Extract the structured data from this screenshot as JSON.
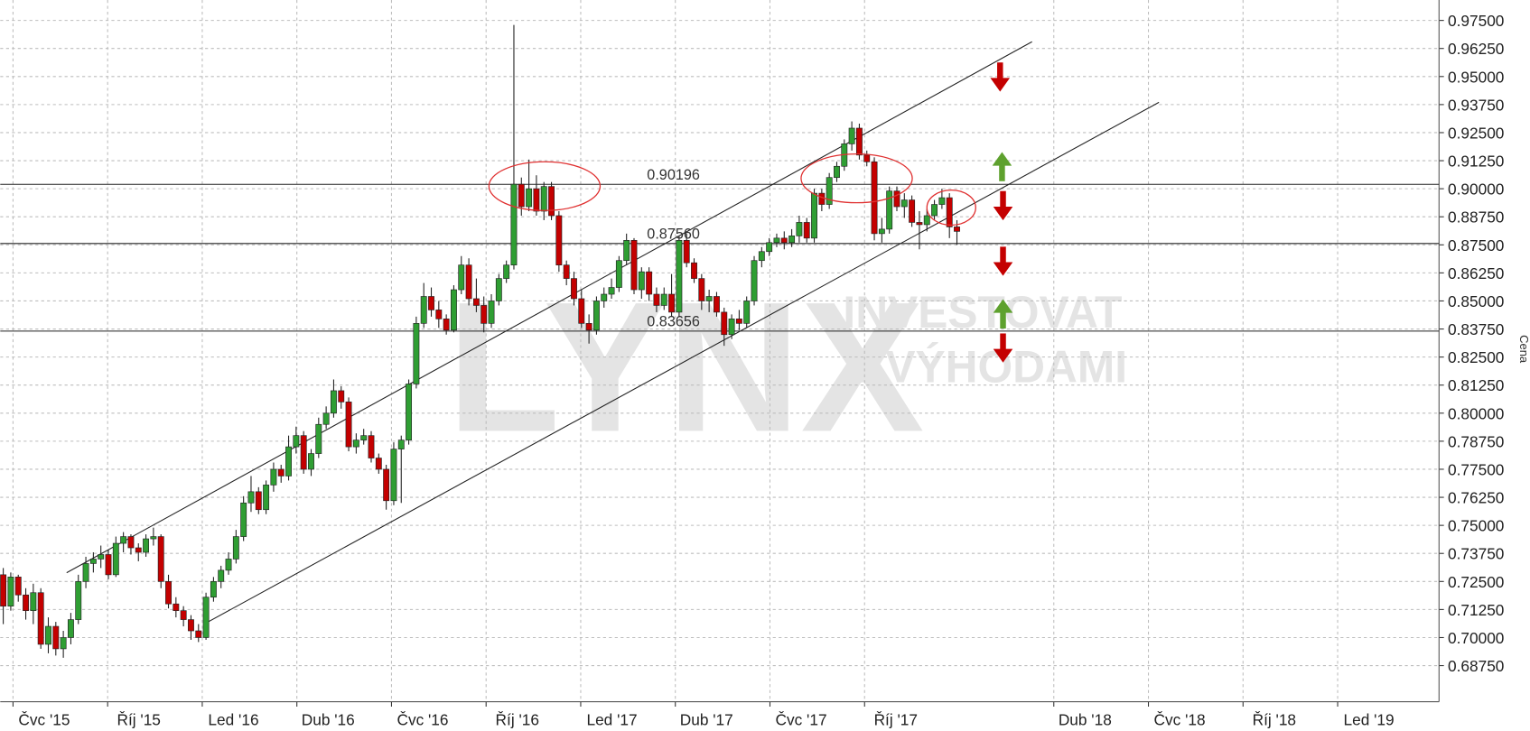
{
  "chart_data": {
    "type": "candlestick",
    "y_axis_label": "Cena",
    "watermark": {
      "logo": "LYNX",
      "line1": "INVESTOVAT",
      "line2": "S VÝHODAMI"
    },
    "up_color": "#2f9e33",
    "down_color": "#c40000",
    "grid": true,
    "xlim": [
      -0.4,
      191.2
    ],
    "ylim": [
      0.6714,
      0.9841
    ],
    "xticks": [
      {
        "value": 1.3,
        "label": "Čvc '15"
      },
      {
        "value": 13.9,
        "label": "Říj '15"
      },
      {
        "value": 26.5,
        "label": "Led '16"
      },
      {
        "value": 39.1,
        "label": "Dub '16"
      },
      {
        "value": 51.7,
        "label": "Čvc '16"
      },
      {
        "value": 64.3,
        "label": "Říj '16"
      },
      {
        "value": 76.9,
        "label": "Led '17"
      },
      {
        "value": 89.5,
        "label": "Dub '17"
      },
      {
        "value": 102.1,
        "label": "Čvc '17"
      },
      {
        "value": 114.7,
        "label": "Říj '17"
      },
      {
        "value": 139.9,
        "label": "Dub '18"
      },
      {
        "value": 152.5,
        "label": "Čvc '18"
      },
      {
        "value": 165.1,
        "label": "Říj '18"
      },
      {
        "value": 177.7,
        "label": "Led '19"
      }
    ],
    "yticks": [
      {
        "value": 0.6875,
        "label": "0.68750"
      },
      {
        "value": 0.7,
        "label": "0.70000"
      },
      {
        "value": 0.7125,
        "label": "0.71250"
      },
      {
        "value": 0.725,
        "label": "0.72500"
      },
      {
        "value": 0.7375,
        "label": "0.73750"
      },
      {
        "value": 0.75,
        "label": "0.75000"
      },
      {
        "value": 0.7625,
        "label": "0.76250"
      },
      {
        "value": 0.775,
        "label": "0.77500"
      },
      {
        "value": 0.7875,
        "label": "0.78750"
      },
      {
        "value": 0.8,
        "label": "0.80000"
      },
      {
        "value": 0.8125,
        "label": "0.81250"
      },
      {
        "value": 0.825,
        "label": "0.82500"
      },
      {
        "value": 0.8375,
        "label": "0.83750"
      },
      {
        "value": 0.85,
        "label": "0.85000"
      },
      {
        "value": 0.8625,
        "label": "0.86250"
      },
      {
        "value": 0.875,
        "label": "0.87500"
      },
      {
        "value": 0.8875,
        "label": "0.88750"
      },
      {
        "value": 0.9,
        "label": "0.90000"
      },
      {
        "value": 0.9125,
        "label": "0.91250"
      },
      {
        "value": 0.925,
        "label": "0.92500"
      },
      {
        "value": 0.9375,
        "label": "0.93750"
      },
      {
        "value": 0.95,
        "label": "0.95000"
      },
      {
        "value": 0.9625,
        "label": "0.96250"
      },
      {
        "value": 0.975,
        "label": "0.97500"
      }
    ],
    "levels": [
      {
        "value": 0.90196,
        "label": "0.90196"
      },
      {
        "value": 0.8756,
        "label": "0.87560"
      },
      {
        "value": 0.83656,
        "label": "0.83656"
      }
    ],
    "trendlines": [
      {
        "x": [
          8.44,
          137.0
        ],
        "values": [
          0.7289,
          0.9655
        ]
      },
      {
        "x": [
          26.9,
          153.9
        ],
        "values": [
          0.7063,
          0.9385
        ]
      }
    ],
    "x": [
      0,
      1,
      2,
      3,
      4,
      5,
      6,
      7,
      8,
      9,
      10,
      11,
      12,
      13,
      14,
      15,
      16,
      17,
      18,
      19,
      20,
      21,
      22,
      23,
      24,
      25,
      26,
      27,
      28,
      29,
      30,
      31,
      32,
      33,
      34,
      35,
      36,
      37,
      38,
      39,
      40,
      41,
      42,
      43,
      44,
      45,
      46,
      47,
      48,
      49,
      50,
      51,
      52,
      53,
      54,
      55,
      56,
      57,
      58,
      59,
      60,
      61,
      62,
      63,
      64,
      65,
      66,
      67,
      68,
      69,
      70,
      71,
      72,
      73,
      74,
      75,
      76,
      77,
      78,
      79,
      80,
      81,
      82,
      83,
      84,
      85,
      86,
      87,
      88,
      89,
      90,
      91,
      92,
      93,
      94,
      95,
      96,
      97,
      98,
      99,
      100,
      101,
      102,
      103,
      104,
      105,
      106,
      107,
      108,
      109,
      110,
      111,
      112,
      113,
      114,
      115,
      116,
      117,
      118,
      119,
      120,
      121,
      122,
      123,
      124,
      125,
      126,
      127
    ],
    "open": [
      0.728,
      0.714,
      0.727,
      0.719,
      0.712,
      0.72,
      0.697,
      0.705,
      0.695,
      0.7,
      0.708,
      0.725,
      0.733,
      0.735,
      0.737,
      0.728,
      0.742,
      0.745,
      0.74,
      0.738,
      0.744,
      0.745,
      0.725,
      0.715,
      0.712,
      0.708,
      0.703,
      0.7,
      0.718,
      0.725,
      0.73,
      0.735,
      0.745,
      0.76,
      0.765,
      0.757,
      0.768,
      0.775,
      0.772,
      0.785,
      0.79,
      0.775,
      0.782,
      0.795,
      0.8,
      0.81,
      0.805,
      0.785,
      0.788,
      0.79,
      0.78,
      0.775,
      0.761,
      0.784,
      0.788,
      0.813,
      0.84,
      0.852,
      0.846,
      0.842,
      0.837,
      0.855,
      0.866,
      0.851,
      0.848,
      0.84,
      0.85,
      0.86,
      0.866,
      0.902,
      0.892,
      0.9,
      0.89,
      0.901,
      0.888,
      0.866,
      0.86,
      0.851,
      0.84,
      0.837,
      0.85,
      0.853,
      0.856,
      0.868,
      0.877,
      0.855,
      0.863,
      0.853,
      0.848,
      0.853,
      0.845,
      0.877,
      0.867,
      0.86,
      0.85,
      0.852,
      0.845,
      0.835,
      0.842,
      0.84,
      0.85,
      0.868,
      0.872,
      0.876,
      0.878,
      0.876,
      0.879,
      0.885,
      0.878,
      0.898,
      0.893,
      0.905,
      0.91,
      0.92,
      0.927,
      0.915,
      0.912,
      0.88,
      0.882,
      0.899,
      0.892,
      0.895,
      0.885,
      0.884,
      0.888,
      0.893,
      0.896,
      0.883
    ],
    "high": [
      0.731,
      0.729,
      0.728,
      0.722,
      0.724,
      0.722,
      0.709,
      0.707,
      0.703,
      0.711,
      0.728,
      0.736,
      0.738,
      0.741,
      0.739,
      0.745,
      0.747,
      0.746,
      0.742,
      0.746,
      0.749,
      0.746,
      0.728,
      0.718,
      0.714,
      0.71,
      0.706,
      0.72,
      0.727,
      0.732,
      0.738,
      0.748,
      0.763,
      0.772,
      0.767,
      0.77,
      0.778,
      0.777,
      0.79,
      0.794,
      0.792,
      0.784,
      0.798,
      0.803,
      0.815,
      0.812,
      0.807,
      0.791,
      0.793,
      0.792,
      0.782,
      0.777,
      0.787,
      0.79,
      0.815,
      0.843,
      0.858,
      0.856,
      0.85,
      0.844,
      0.857,
      0.87,
      0.869,
      0.86,
      0.852,
      0.853,
      0.862,
      0.868,
      0.973,
      0.905,
      0.913,
      0.906,
      0.903,
      0.903,
      0.89,
      0.868,
      0.863,
      0.855,
      0.844,
      0.852,
      0.856,
      0.86,
      0.87,
      0.88,
      0.878,
      0.865,
      0.865,
      0.856,
      0.856,
      0.862,
      0.879,
      0.88,
      0.869,
      0.862,
      0.855,
      0.854,
      0.847,
      0.844,
      0.846,
      0.852,
      0.87,
      0.874,
      0.878,
      0.88,
      0.881,
      0.882,
      0.888,
      0.887,
      0.9,
      0.9,
      0.907,
      0.912,
      0.922,
      0.93,
      0.929,
      0.917,
      0.914,
      0.887,
      0.901,
      0.901,
      0.898,
      0.897,
      0.89,
      0.891,
      0.895,
      0.9,
      0.898,
      0.886
    ],
    "low": [
      0.706,
      0.712,
      0.716,
      0.708,
      0.706,
      0.695,
      0.693,
      0.692,
      0.691,
      0.697,
      0.706,
      0.722,
      0.729,
      0.731,
      0.726,
      0.727,
      0.738,
      0.737,
      0.734,
      0.736,
      0.741,
      0.722,
      0.713,
      0.709,
      0.705,
      0.699,
      0.698,
      0.699,
      0.716,
      0.722,
      0.728,
      0.733,
      0.743,
      0.756,
      0.755,
      0.755,
      0.765,
      0.769,
      0.77,
      0.782,
      0.773,
      0.772,
      0.78,
      0.793,
      0.798,
      0.802,
      0.783,
      0.782,
      0.786,
      0.778,
      0.773,
      0.757,
      0.759,
      0.76,
      0.786,
      0.811,
      0.838,
      0.843,
      0.838,
      0.835,
      0.836,
      0.853,
      0.848,
      0.845,
      0.836,
      0.838,
      0.848,
      0.858,
      0.864,
      0.888,
      0.89,
      0.888,
      0.886,
      0.886,
      0.863,
      0.857,
      0.848,
      0.838,
      0.831,
      0.835,
      0.847,
      0.851,
      0.854,
      0.866,
      0.853,
      0.851,
      0.85,
      0.845,
      0.846,
      0.843,
      0.843,
      0.865,
      0.858,
      0.846,
      0.845,
      0.843,
      0.83,
      0.833,
      0.837,
      0.838,
      0.848,
      0.865,
      0.87,
      0.874,
      0.873,
      0.874,
      0.876,
      0.876,
      0.876,
      0.89,
      0.891,
      0.903,
      0.908,
      0.917,
      0.913,
      0.91,
      0.877,
      0.876,
      0.88,
      0.89,
      0.887,
      0.883,
      0.873,
      0.881,
      0.886,
      0.891,
      0.878,
      0.875
    ],
    "close": [
      0.714,
      0.727,
      0.719,
      0.712,
      0.72,
      0.697,
      0.705,
      0.695,
      0.7,
      0.708,
      0.725,
      0.733,
      0.735,
      0.737,
      0.728,
      0.742,
      0.745,
      0.74,
      0.738,
      0.744,
      0.745,
      0.725,
      0.715,
      0.712,
      0.708,
      0.703,
      0.7,
      0.718,
      0.725,
      0.73,
      0.735,
      0.745,
      0.76,
      0.765,
      0.757,
      0.768,
      0.775,
      0.772,
      0.785,
      0.79,
      0.775,
      0.782,
      0.795,
      0.8,
      0.81,
      0.805,
      0.785,
      0.788,
      0.79,
      0.78,
      0.775,
      0.761,
      0.784,
      0.788,
      0.813,
      0.84,
      0.852,
      0.846,
      0.842,
      0.837,
      0.855,
      0.866,
      0.851,
      0.848,
      0.84,
      0.85,
      0.86,
      0.866,
      0.902,
      0.892,
      0.9,
      0.89,
      0.901,
      0.888,
      0.866,
      0.86,
      0.851,
      0.84,
      0.837,
      0.85,
      0.853,
      0.856,
      0.868,
      0.877,
      0.855,
      0.863,
      0.853,
      0.848,
      0.853,
      0.845,
      0.877,
      0.867,
      0.86,
      0.85,
      0.852,
      0.845,
      0.835,
      0.842,
      0.84,
      0.85,
      0.868,
      0.872,
      0.876,
      0.878,
      0.876,
      0.879,
      0.885,
      0.878,
      0.898,
      0.893,
      0.905,
      0.91,
      0.92,
      0.927,
      0.915,
      0.912,
      0.88,
      0.882,
      0.899,
      0.892,
      0.895,
      0.885,
      0.884,
      0.888,
      0.893,
      0.896,
      0.883,
      0.881
    ]
  }
}
